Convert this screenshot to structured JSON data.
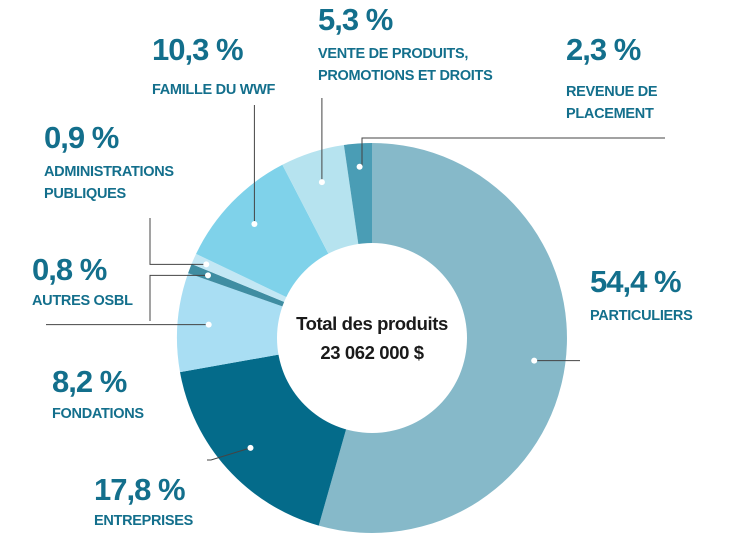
{
  "chart_data": {
    "type": "pie",
    "center": {
      "title": "Total des produits",
      "value": "23 062 000 $"
    },
    "slices": [
      {
        "pct_label": "54,4 %",
        "value": 54.4,
        "name": [
          "PARTICULIERS"
        ],
        "color": "#86b9c9"
      },
      {
        "pct_label": "17,8 %",
        "value": 17.8,
        "name": [
          "ENTREPRISES"
        ],
        "color": "#046b8a"
      },
      {
        "pct_label": "8,2 %",
        "value": 8.2,
        "name": [
          "FONDATIONS"
        ],
        "color": "#a9def3"
      },
      {
        "pct_label": "0,8 %",
        "value": 0.8,
        "name": [
          "AUTRES OSBL"
        ],
        "color": "#3f8da2"
      },
      {
        "pct_label": "0,9 %",
        "value": 0.9,
        "name": [
          "ADMINISTRATIONS",
          "PUBLIQUES"
        ],
        "color": "#c3e7f4"
      },
      {
        "pct_label": "10,3 %",
        "value": 10.3,
        "name": [
          "FAMILLE DU WWF"
        ],
        "color": "#7fd2ea"
      },
      {
        "pct_label": "5,3 %",
        "value": 5.3,
        "name": [
          "VENTE DE PRODUITS,",
          "PROMOTIONS ET DROITS"
        ],
        "color": "#b6e3ef"
      },
      {
        "pct_label": "2,3 %",
        "value": 2.3,
        "name": [
          "REVENUE DE",
          "PLACEMENT"
        ],
        "color": "#4a9db5"
      }
    ],
    "label_color": "#136f8c",
    "leader_color": "#444444"
  }
}
